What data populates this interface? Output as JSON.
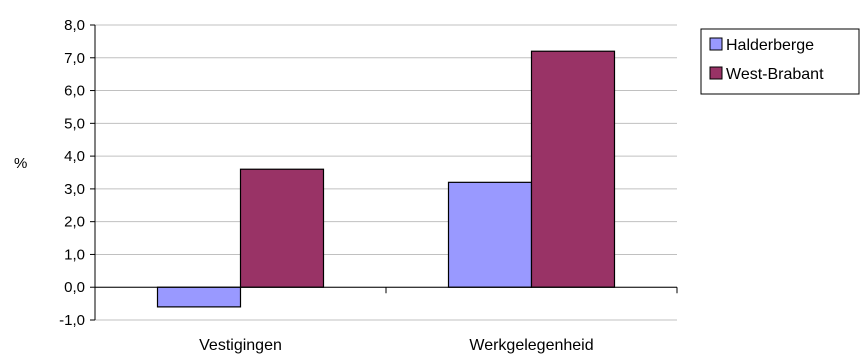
{
  "chart_data": {
    "type": "bar",
    "categories": [
      "Vestigingen",
      "Werkgelegenheid"
    ],
    "series": [
      {
        "name": "Halderberge",
        "values": [
          -0.6,
          3.2
        ]
      },
      {
        "name": "West-Brabant",
        "values": [
          3.6,
          7.2
        ]
      }
    ],
    "title": "",
    "xlabel": "",
    "ylabel": "%",
    "ylim": [
      -1.0,
      8.0
    ],
    "yticks": [
      "8,0",
      "7,0",
      "6,0",
      "5,0",
      "4,0",
      "3,0",
      "2,0",
      "1,0",
      "0,0",
      "-1,0"
    ],
    "grid": true,
    "legend_position": "top-right",
    "colors": {
      "Halderberge": "#9999ff",
      "West-Brabant": "#993366",
      "grid": "#c0c0c0",
      "axis": "#000000"
    }
  }
}
